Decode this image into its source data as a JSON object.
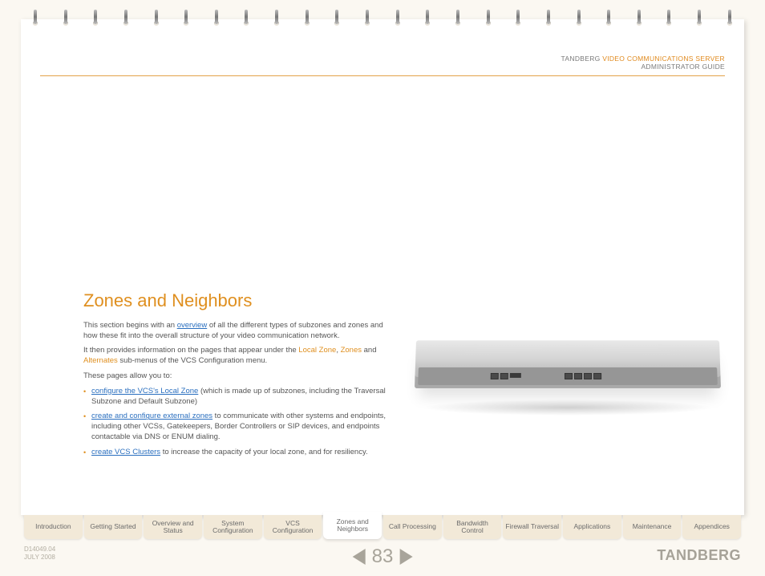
{
  "header": {
    "company": "TANDBERG",
    "product": "VIDEO COMMUNICATIONS SERVER",
    "subtitle": "ADMINISTRATOR GUIDE"
  },
  "content": {
    "title": "Zones and Neighbors",
    "p1_a": "This section begins with an ",
    "p1_link": "overview",
    "p1_b": " of all the different types of subzones and zones and how these fit into the overall structure of your video communication network.",
    "p2_a": "It then provides information on the pages that appear under the ",
    "p2_l1": "Local Zone",
    "p2_c": ", ",
    "p2_l2": "Zones",
    "p2_d": " and ",
    "p2_l3": "Alternates",
    "p2_e": " sub-menus of the VCS Configuration menu.",
    "p3": "These pages allow you to:",
    "b1_link": "configure the VCS's Local Zone",
    "b1_text": " (which is made up of subzones, including the Traversal Subzone and Default Subzone)",
    "b2_link": "create and configure external zones",
    "b2_text": " to communicate with other systems and endpoints, including other VCSs, Gatekeepers, Border Controllers or SIP devices, and endpoints contactable via DNS or ENUM dialing.",
    "b3_link": "create VCS Clusters",
    "b3_text": " to increase the capacity of your local zone, and for resiliency."
  },
  "tabs": [
    "Introduction",
    "Getting Started",
    "Overview and Status",
    "System Configuration",
    "VCS Configuration",
    "Zones and Neighbors",
    "Call Processing",
    "Bandwidth Control",
    "Firewall Traversal",
    "Applications",
    "Maintenance",
    "Appendices"
  ],
  "active_tab_index": 5,
  "footer": {
    "doc": "D14049.04",
    "date": "JULY 2008",
    "page": "83",
    "brand": "TANDBERG"
  },
  "colors": {
    "accent": "#df8f1f",
    "link": "#2a6fbf",
    "page_bg": "#ffffff",
    "body_bg": "#fbf8f2",
    "tab_bg": "#f2e9d8",
    "muted": "#a8a49a"
  }
}
